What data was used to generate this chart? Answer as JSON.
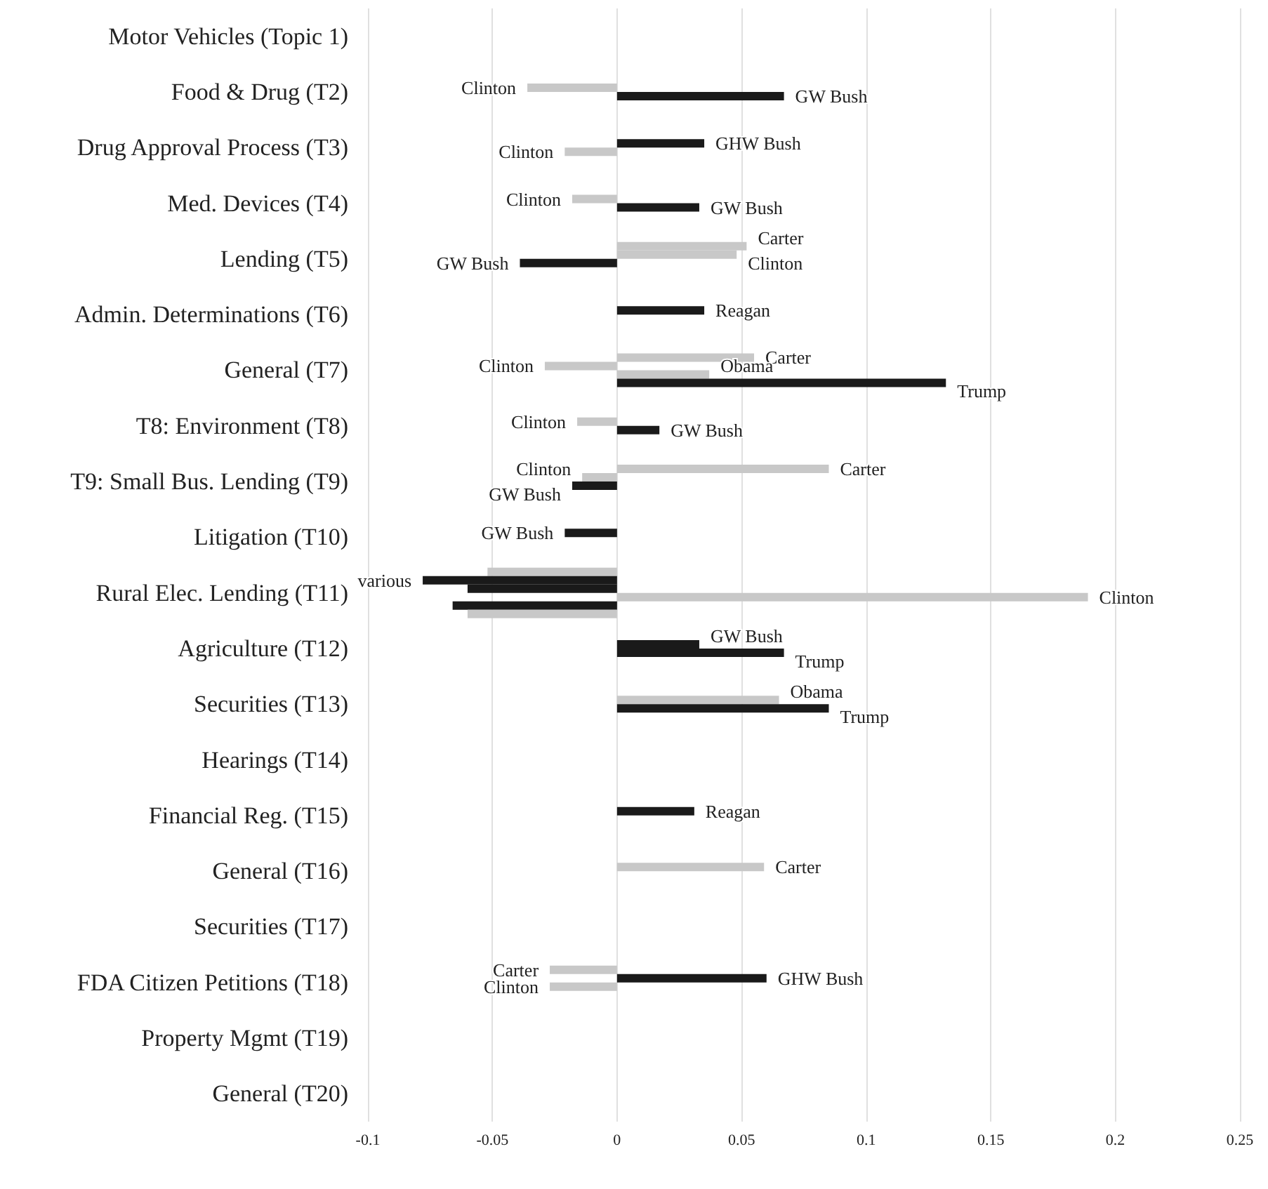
{
  "chart_data": {
    "type": "bar",
    "orientation": "horizontal",
    "categories": [
      "Motor Vehicles (Topic 1)",
      "Food & Drug (T2)",
      "Drug Approval Process (T3)",
      "Med. Devices (T4)",
      "Lending (T5)",
      "Admin. Determinations (T6)",
      "General (T7)",
      "T8: Environment (T8)",
      "T9: Small Bus. Lending (T9)",
      "Litigation (T10)",
      "Rural Elec. Lending (T11)",
      "Agriculture (T12)",
      "Securities (T13)",
      "Hearings (T14)",
      "Financial Reg. (T15)",
      "General (T16)",
      "Securities (T17)",
      "FDA Citizen Petitions (T18)",
      "Property Mgmt (T19)",
      "General (T20)"
    ],
    "series": [
      {
        "values": [
          null,
          null,
          null,
          null,
          null,
          null,
          null,
          null,
          null,
          null,
          -0.052,
          null,
          null,
          null,
          null,
          null,
          null,
          null,
          null,
          null
        ],
        "colors": [
          null,
          null,
          null,
          null,
          null,
          null,
          null,
          null,
          null,
          null,
          "#c8c8c8",
          null,
          null,
          null,
          null,
          null,
          null,
          null,
          null,
          null
        ],
        "value_labels": [
          null,
          null,
          null,
          null,
          null,
          null,
          null,
          null,
          null,
          null,
          null,
          null,
          null,
          null,
          null,
          null,
          null,
          null,
          null,
          null
        ]
      },
      {
        "values": [
          null,
          null,
          null,
          null,
          0.052,
          null,
          0.055,
          null,
          0.085,
          null,
          -0.078,
          null,
          null,
          null,
          null,
          null,
          null,
          -0.027,
          null,
          null
        ],
        "colors": [
          null,
          null,
          null,
          null,
          "#c8c8c8",
          null,
          "#c8c8c8",
          null,
          "#c8c8c8",
          null,
          "#1a1a1a",
          null,
          null,
          null,
          null,
          null,
          null,
          "#c8c8c8",
          null,
          null
        ],
        "value_labels": [
          null,
          null,
          null,
          null,
          "Carter",
          null,
          "Carter",
          null,
          "Carter",
          null,
          "various",
          null,
          null,
          null,
          null,
          null,
          null,
          "Carter",
          null,
          null
        ]
      },
      {
        "values": [
          null,
          -0.036,
          0.035,
          -0.018,
          0.048,
          0.035,
          -0.029,
          -0.016,
          -0.014,
          -0.021,
          -0.06,
          0.033,
          0.065,
          null,
          0.031,
          0.059,
          null,
          0.06,
          null,
          null
        ],
        "colors": [
          null,
          "#c8c8c8",
          "#1a1a1a",
          "#c8c8c8",
          "#c8c8c8",
          "#1a1a1a",
          "#c8c8c8",
          "#c8c8c8",
          "#c8c8c8",
          "#1a1a1a",
          "#1a1a1a",
          "#1a1a1a",
          "#c8c8c8",
          null,
          "#1a1a1a",
          "#c8c8c8",
          null,
          "#1a1a1a",
          null,
          null
        ],
        "value_labels": [
          null,
          "Clinton",
          "GHW Bush",
          "Clinton",
          "Clinton",
          "Reagan",
          "Clinton",
          "Clinton",
          "Clinton",
          "GW Bush",
          null,
          "GW Bush",
          "Obama",
          null,
          "Reagan",
          "Carter",
          null,
          "GHW Bush",
          null,
          null
        ]
      },
      {
        "values": [
          null,
          0.067,
          -0.021,
          0.033,
          -0.039,
          null,
          0.037,
          0.017,
          -0.018,
          null,
          0.189,
          0.067,
          0.085,
          null,
          null,
          null,
          null,
          -0.027,
          null,
          null
        ],
        "colors": [
          null,
          "#1a1a1a",
          "#c8c8c8",
          "#1a1a1a",
          "#1a1a1a",
          null,
          "#c8c8c8",
          "#1a1a1a",
          "#1a1a1a",
          null,
          "#c8c8c8",
          "#1a1a1a",
          "#1a1a1a",
          null,
          null,
          null,
          null,
          "#c8c8c8",
          null,
          null
        ],
        "value_labels": [
          null,
          "GW Bush",
          "Clinton",
          "GW Bush",
          "GW Bush",
          null,
          "Obama",
          "GW Bush",
          "GW Bush",
          null,
          "Clinton",
          "Trump",
          "Trump",
          null,
          null,
          null,
          null,
          "Clinton",
          null,
          null
        ]
      },
      {
        "values": [
          null,
          null,
          null,
          null,
          null,
          null,
          0.132,
          null,
          null,
          null,
          -0.066,
          null,
          null,
          null,
          null,
          null,
          null,
          null,
          null,
          null
        ],
        "colors": [
          null,
          null,
          null,
          null,
          null,
          null,
          "#1a1a1a",
          null,
          null,
          null,
          "#1a1a1a",
          null,
          null,
          null,
          null,
          null,
          null,
          null,
          null,
          null
        ],
        "value_labels": [
          null,
          null,
          null,
          null,
          null,
          null,
          "Trump",
          null,
          null,
          null,
          null,
          null,
          null,
          null,
          null,
          null,
          null,
          null,
          null,
          null
        ]
      },
      {
        "values": [
          null,
          null,
          null,
          null,
          null,
          null,
          null,
          null,
          null,
          null,
          -0.06,
          null,
          null,
          null,
          null,
          null,
          null,
          null,
          null,
          null
        ],
        "colors": [
          null,
          null,
          null,
          null,
          null,
          null,
          null,
          null,
          null,
          null,
          "#c8c8c8",
          null,
          null,
          null,
          null,
          null,
          null,
          null,
          null,
          null
        ],
        "value_labels": [
          null,
          null,
          null,
          null,
          null,
          null,
          null,
          null,
          null,
          null,
          null,
          null,
          null,
          null,
          null,
          null,
          null,
          null,
          null,
          null
        ]
      }
    ],
    "xlim": [
      -0.1,
      0.25
    ],
    "xticks": [
      -0.1,
      -0.05,
      0,
      0.05,
      0.1,
      0.15,
      0.2,
      0.25
    ],
    "grid": "x"
  }
}
